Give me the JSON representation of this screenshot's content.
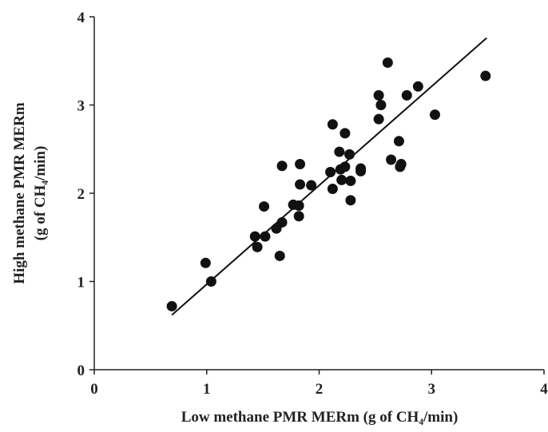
{
  "chart_data": {
    "type": "scatter",
    "x_label": "Low methane PMR MERm (g of CH₄/min)",
    "y_label": [
      "High methane PMR MERm",
      "(g of CH₄/min)"
    ],
    "xlim": [
      0,
      4
    ],
    "ylim": [
      0,
      4
    ],
    "xticks": [
      0,
      1,
      2,
      3,
      4
    ],
    "yticks": [
      0,
      1,
      2,
      3,
      4
    ],
    "color": "#111111",
    "x": [
      0.69,
      0.99,
      1.04,
      1.43,
      1.45,
      1.51,
      1.52,
      1.62,
      1.65,
      1.67,
      1.67,
      1.77,
      1.82,
      1.83,
      1.83,
      1.82,
      1.93,
      2.1,
      2.12,
      2.12,
      2.18,
      2.19,
      2.2,
      2.23,
      2.23,
      2.27,
      2.28,
      2.28,
      2.37,
      2.37,
      2.53,
      2.55,
      2.53,
      2.61,
      2.64,
      2.71,
      2.72,
      2.73,
      2.78,
      2.88,
      3.03,
      3.48
    ],
    "values": [
      0.72,
      1.21,
      1.0,
      1.51,
      1.39,
      1.85,
      1.51,
      1.6,
      1.29,
      1.67,
      2.31,
      1.87,
      1.86,
      2.33,
      2.1,
      1.74,
      2.09,
      2.24,
      2.78,
      2.05,
      2.47,
      2.27,
      2.15,
      2.68,
      2.3,
      2.44,
      2.14,
      1.92,
      2.28,
      2.25,
      3.11,
      3.0,
      2.84,
      3.48,
      2.38,
      2.59,
      2.3,
      2.33,
      3.11,
      3.21,
      2.89,
      3.33
    ],
    "trendline": {
      "x": [
        0.69,
        3.49
      ],
      "y": [
        0.62,
        3.76
      ]
    }
  }
}
